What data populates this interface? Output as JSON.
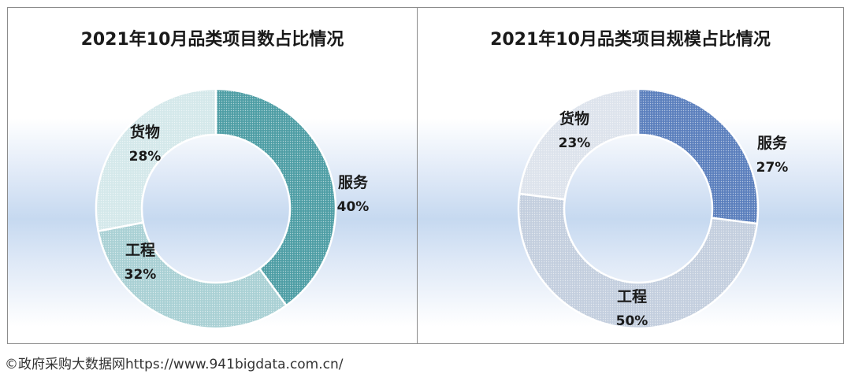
{
  "chart_data": [
    {
      "type": "donut",
      "title": "2021年10月品类项目数占比情况",
      "slices": [
        {
          "name": "服务",
          "value": 40,
          "label": "40%"
        },
        {
          "name": "工程",
          "value": 32,
          "label": "32%"
        },
        {
          "name": "货物",
          "value": 28,
          "label": "28%"
        }
      ],
      "colors": {
        "服务": "#4e9ea5",
        "工程": "#a9d0d4",
        "货物": "#d4e8ea"
      },
      "legend": "none"
    },
    {
      "type": "donut",
      "title": "2021年10月品类项目规模占比情况",
      "slices": [
        {
          "name": "服务",
          "value": 27,
          "label": "27%"
        },
        {
          "name": "工程",
          "value": 50,
          "label": "50%"
        },
        {
          "name": "货物",
          "value": 23,
          "label": "23%"
        }
      ],
      "colors": {
        "服务": "#5b7fbd",
        "工程": "#c3cede",
        "货物": "#dde3ec"
      },
      "legend": "none"
    }
  ],
  "footer": "©政府采购大数据网https://www.941bigdata.com.cn/"
}
